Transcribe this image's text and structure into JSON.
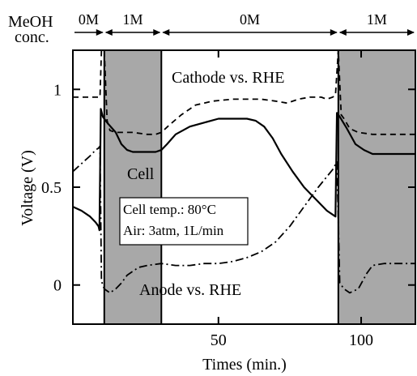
{
  "chart_data": {
    "type": "line",
    "xlabel": "Times (min.)",
    "ylabel": "Voltage (V)",
    "xlim": [
      -1,
      119
    ],
    "ylim": [
      -0.2,
      1.2
    ],
    "xticks": [
      50,
      100
    ],
    "yticks": [
      0,
      0.5,
      1
    ],
    "xtick_labels": [
      "50",
      "100"
    ],
    "ytick_labels": [
      "0",
      "0.5",
      "1"
    ],
    "concentration_header": {
      "label_line1": "MeOH",
      "label_line2": "conc.",
      "segments": [
        {
          "label": "0M",
          "start": -1,
          "end": 10
        },
        {
          "label": "1M",
          "start": 10,
          "end": 30
        },
        {
          "label": "0M",
          "start": 30,
          "end": 92
        },
        {
          "label": "1M",
          "start": 92,
          "end": 119
        }
      ]
    },
    "shaded_regions": [
      {
        "start": 10,
        "end": 30,
        "color": "#a8a8a8"
      },
      {
        "start": 92,
        "end": 119,
        "color": "#a8a8a8"
      }
    ],
    "annotations": {
      "cathode": "Cathode vs. RHE",
      "cell": "Cell",
      "anode": "Anode vs. RHE",
      "condition_line1": "Cell temp.: 80°C",
      "condition_line2": "Air: 3atm, 1L/min"
    },
    "series": [
      {
        "style": "dashed",
        "points": [
          [
            -1,
            0.96
          ],
          [
            5,
            0.96
          ],
          [
            8.5,
            0.96
          ],
          [
            9,
            1.2
          ],
          [
            10,
            1.2
          ],
          [
            11,
            0.84
          ],
          [
            12,
            0.79
          ],
          [
            14,
            0.78
          ],
          [
            20,
            0.78
          ],
          [
            25,
            0.77
          ],
          [
            28,
            0.77
          ],
          [
            30,
            0.78
          ],
          [
            33,
            0.82
          ],
          [
            37,
            0.87
          ],
          [
            42,
            0.92
          ],
          [
            48,
            0.94
          ],
          [
            55,
            0.95
          ],
          [
            60,
            0.95
          ],
          [
            65,
            0.95
          ],
          [
            70,
            0.94
          ],
          [
            74,
            0.93
          ],
          [
            78,
            0.95
          ],
          [
            82,
            0.96
          ],
          [
            86,
            0.96
          ],
          [
            88,
            0.95
          ],
          [
            90,
            0.96
          ],
          [
            91,
            0.97
          ],
          [
            92,
            1.2
          ],
          [
            93,
            0.87
          ],
          [
            94,
            0.85
          ],
          [
            96,
            0.8
          ],
          [
            99,
            0.78
          ],
          [
            104,
            0.77
          ],
          [
            110,
            0.77
          ],
          [
            119,
            0.77
          ]
        ]
      },
      {
        "style": "solid",
        "points": [
          [
            -1,
            0.4
          ],
          [
            2,
            0.38
          ],
          [
            5,
            0.35
          ],
          [
            7,
            0.32
          ],
          [
            8,
            0.3
          ],
          [
            8.3,
            0.28
          ],
          [
            8.8,
            0.9
          ],
          [
            9.5,
            0.86
          ],
          [
            11,
            0.83
          ],
          [
            14,
            0.78
          ],
          [
            16,
            0.72
          ],
          [
            18,
            0.69
          ],
          [
            20,
            0.68
          ],
          [
            25,
            0.68
          ],
          [
            28,
            0.68
          ],
          [
            30,
            0.69
          ],
          [
            32,
            0.72
          ],
          [
            35,
            0.77
          ],
          [
            40,
            0.81
          ],
          [
            45,
            0.83
          ],
          [
            50,
            0.85
          ],
          [
            55,
            0.85
          ],
          [
            60,
            0.85
          ],
          [
            63,
            0.84
          ],
          [
            66,
            0.81
          ],
          [
            69,
            0.75
          ],
          [
            72,
            0.67
          ],
          [
            76,
            0.58
          ],
          [
            80,
            0.5
          ],
          [
            84,
            0.44
          ],
          [
            88,
            0.38
          ],
          [
            90,
            0.36
          ],
          [
            91,
            0.35
          ],
          [
            91.5,
            0.88
          ],
          [
            92.5,
            0.86
          ],
          [
            95,
            0.8
          ],
          [
            98,
            0.72
          ],
          [
            101,
            0.69
          ],
          [
            104,
            0.67
          ],
          [
            110,
            0.67
          ],
          [
            119,
            0.67
          ]
        ]
      },
      {
        "style": "dashdot",
        "points": [
          [
            -1,
            0.58
          ],
          [
            2,
            0.62
          ],
          [
            5,
            0.66
          ],
          [
            7,
            0.69
          ],
          [
            8,
            0.7
          ],
          [
            8.5,
            0.71
          ],
          [
            9,
            0.02
          ],
          [
            10,
            -0.02
          ],
          [
            12,
            -0.04
          ],
          [
            14,
            -0.02
          ],
          [
            16,
            0.01
          ],
          [
            18,
            0.05
          ],
          [
            20,
            0.07
          ],
          [
            22,
            0.09
          ],
          [
            25,
            0.1
          ],
          [
            30,
            0.11
          ],
          [
            35,
            0.1
          ],
          [
            40,
            0.1
          ],
          [
            45,
            0.11
          ],
          [
            50,
            0.11
          ],
          [
            55,
            0.12
          ],
          [
            60,
            0.14
          ],
          [
            65,
            0.17
          ],
          [
            70,
            0.22
          ],
          [
            75,
            0.3
          ],
          [
            80,
            0.4
          ],
          [
            85,
            0.5
          ],
          [
            90,
            0.59
          ],
          [
            91.5,
            0.63
          ],
          [
            92.5,
            0.01
          ],
          [
            94,
            -0.02
          ],
          [
            96,
            -0.04
          ],
          [
            99,
            -0.02
          ],
          [
            102,
            0.06
          ],
          [
            104,
            0.1
          ],
          [
            108,
            0.11
          ],
          [
            113,
            0.11
          ],
          [
            119,
            0.11
          ]
        ]
      }
    ]
  }
}
